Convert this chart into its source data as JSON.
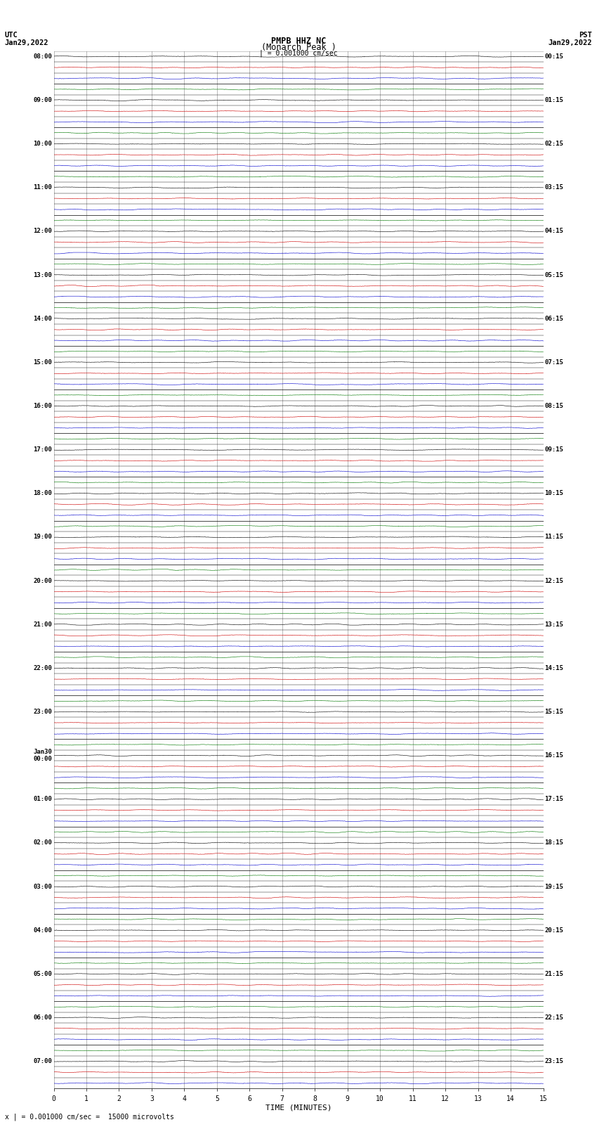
{
  "title_line1": "PMPB HHZ NC",
  "title_line2": "(Monarch Peak )",
  "scale_text": "= 0.001000 cm/sec",
  "bottom_label": "x | = 0.001000 cm/sec =  15000 microvolts",
  "xlabel": "TIME (MINUTES)",
  "utc_label": "UTC",
  "utc_date": "Jan29,2022",
  "pst_label": "PST",
  "pst_date": "Jan29,2022",
  "left_times": [
    "08:00",
    "",
    "",
    "",
    "09:00",
    "",
    "",
    "",
    "10:00",
    "",
    "",
    "",
    "11:00",
    "",
    "",
    "",
    "12:00",
    "",
    "",
    "",
    "13:00",
    "",
    "",
    "",
    "14:00",
    "",
    "",
    "",
    "15:00",
    "",
    "",
    "",
    "16:00",
    "",
    "",
    "",
    "17:00",
    "",
    "",
    "",
    "18:00",
    "",
    "",
    "",
    "19:00",
    "",
    "",
    "",
    "20:00",
    "",
    "",
    "",
    "21:00",
    "",
    "",
    "",
    "22:00",
    "",
    "",
    "",
    "23:00",
    "",
    "",
    "",
    "Jan30\n00:00",
    "",
    "",
    "",
    "01:00",
    "",
    "",
    "",
    "02:00",
    "",
    "",
    "",
    "03:00",
    "",
    "",
    "",
    "04:00",
    "",
    "",
    "",
    "05:00",
    "",
    "",
    "",
    "06:00",
    "",
    "",
    "",
    "07:00",
    "",
    ""
  ],
  "right_times": [
    "00:15",
    "",
    "",
    "",
    "01:15",
    "",
    "",
    "",
    "02:15",
    "",
    "",
    "",
    "03:15",
    "",
    "",
    "",
    "04:15",
    "",
    "",
    "",
    "05:15",
    "",
    "",
    "",
    "06:15",
    "",
    "",
    "",
    "07:15",
    "",
    "",
    "",
    "08:15",
    "",
    "",
    "",
    "09:15",
    "",
    "",
    "",
    "10:15",
    "",
    "",
    "",
    "11:15",
    "",
    "",
    "",
    "12:15",
    "",
    "",
    "",
    "13:15",
    "",
    "",
    "",
    "14:15",
    "",
    "",
    "",
    "15:15",
    "",
    "",
    "",
    "16:15",
    "",
    "",
    "",
    "17:15",
    "",
    "",
    "",
    "18:15",
    "",
    "",
    "",
    "19:15",
    "",
    "",
    "",
    "20:15",
    "",
    "",
    "",
    "21:15",
    "",
    "",
    "",
    "22:15",
    "",
    "",
    "",
    "23:15",
    "",
    ""
  ],
  "n_rows": 95,
  "minutes_per_row": 15,
  "background_color": "#ffffff",
  "line_color_black": "#000000",
  "line_color_red": "#cc0000",
  "line_color_blue": "#0000cc",
  "line_color_green": "#007700",
  "grid_color": "#888888",
  "title_color": "#000000",
  "tick_color": "#000000",
  "trace_amplitude": 0.06,
  "trace_linewidth": 0.4
}
